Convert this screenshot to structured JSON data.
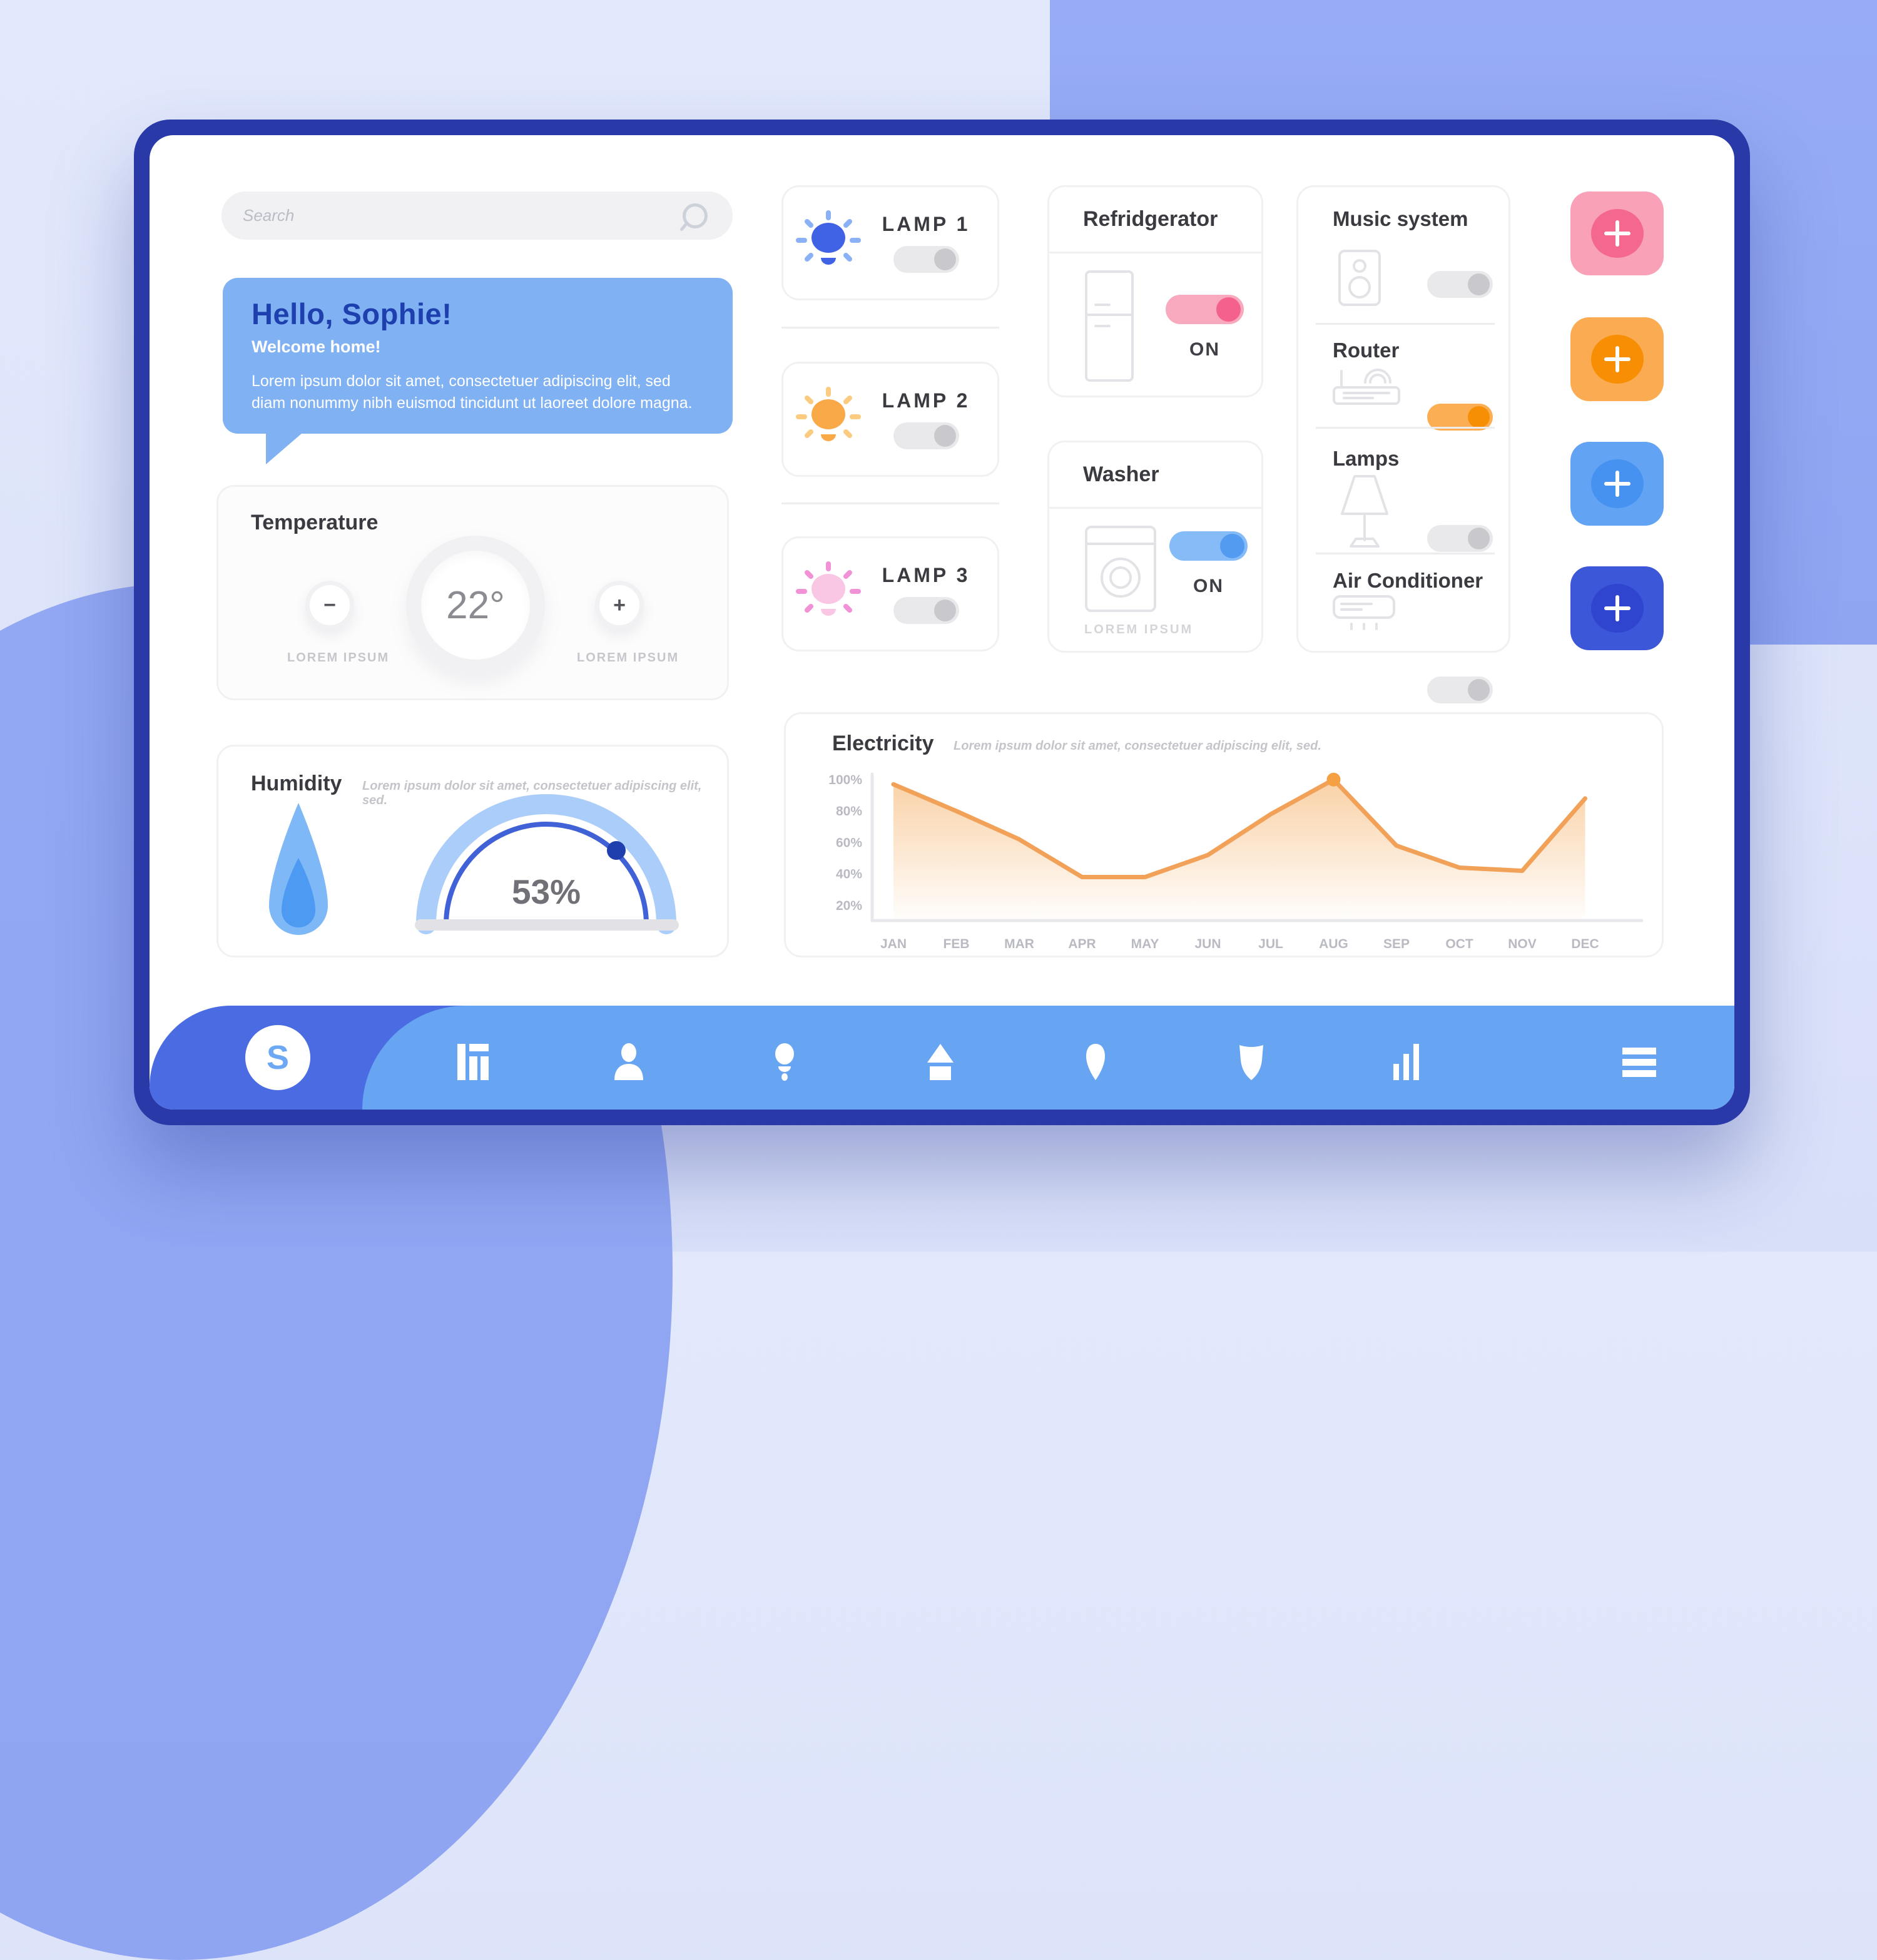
{
  "background": {
    "base_color": "#DDE4FA",
    "accent_color": "#97ACF4",
    "frame_color": "#2939A7"
  },
  "search": {
    "placeholder": "Search"
  },
  "welcome": {
    "title": "Hello, Sophie!",
    "subtitle": "Welcome home!",
    "body": "Lorem ipsum dolor sit amet, consectetuer adipiscing elit, sed diam nonummy nibh euismod tincidunt ut laoreet dolore magna."
  },
  "temperature": {
    "title": "Temperature",
    "value": "22°",
    "decrease": "−",
    "increase": "+",
    "decrease_caption": "LOREM IPSUM",
    "increase_caption": "LOREM IPSUM"
  },
  "humidity": {
    "title": "Humidity",
    "subtitle": "Lorem ipsum dolor sit amet, consectetuer adipiscing elit, sed.",
    "value": "53%"
  },
  "lamps": [
    {
      "label": "LAMP 1",
      "toggle": "off",
      "bulb_color": "#4063E6",
      "ray_color": "#8AB1F5"
    },
    {
      "label": "LAMP 2",
      "toggle": "off",
      "bulb_color": "#F9A948",
      "ray_color": "#FBCB82"
    },
    {
      "label": "LAMP 3",
      "toggle": "off",
      "bulb_color": "#F9C6E3",
      "ray_color": "#F191D6"
    }
  ],
  "refrigerator": {
    "title": "Refridgerator",
    "toggle": "pink",
    "status": "ON"
  },
  "washer": {
    "title": "Washer",
    "toggle": "blue",
    "status": "ON",
    "caption": "LOREM IPSUM"
  },
  "devices": [
    {
      "label": "Music system",
      "icon": "speaker-icon",
      "toggle": "off"
    },
    {
      "label": "Router",
      "icon": "router-icon",
      "toggle": "orange"
    },
    {
      "label": "Lamps",
      "icon": "lamp-icon",
      "toggle": "off"
    },
    {
      "label": "Air Conditioner",
      "icon": "air-conditioner-icon",
      "toggle": "off"
    }
  ],
  "add_buttons": [
    {
      "icon": "plus-icon",
      "color": "pink"
    },
    {
      "icon": "plus-icon",
      "color": "orange"
    },
    {
      "icon": "plus-icon",
      "color": "light-blue"
    },
    {
      "icon": "plus-icon",
      "color": "blue"
    }
  ],
  "electricity": {
    "title": "Electricity",
    "subtitle": "Lorem ipsum dolor sit amet, consectetuer adipiscing elit, sed."
  },
  "chart_data": {
    "type": "area",
    "title": "Electricity",
    "categories": [
      "JAN",
      "FEB",
      "MAR",
      "APR",
      "MAY",
      "JUN",
      "JUL",
      "AUG",
      "SEP",
      "OCT",
      "NOV",
      "DEC"
    ],
    "values": [
      97,
      80,
      62,
      38,
      38,
      52,
      78,
      100,
      58,
      44,
      42,
      88
    ],
    "xlabel": "",
    "ylabel": "",
    "ylim": [
      0,
      100
    ],
    "ytick_labels": [
      "100%",
      "80%",
      "60%",
      "40%",
      "20%"
    ],
    "ytick_values": [
      100,
      80,
      60,
      40,
      20
    ],
    "grid": false,
    "legend": false,
    "peak_index": 7,
    "line_color": "#F2A159",
    "fill_color": "#F8C690",
    "marker_color": "#F5A143"
  },
  "nav": {
    "brand": "S",
    "items": [
      "dashboard",
      "user",
      "lightbulb",
      "home",
      "location-pin",
      "shield",
      "bar-chart",
      "menu"
    ]
  }
}
